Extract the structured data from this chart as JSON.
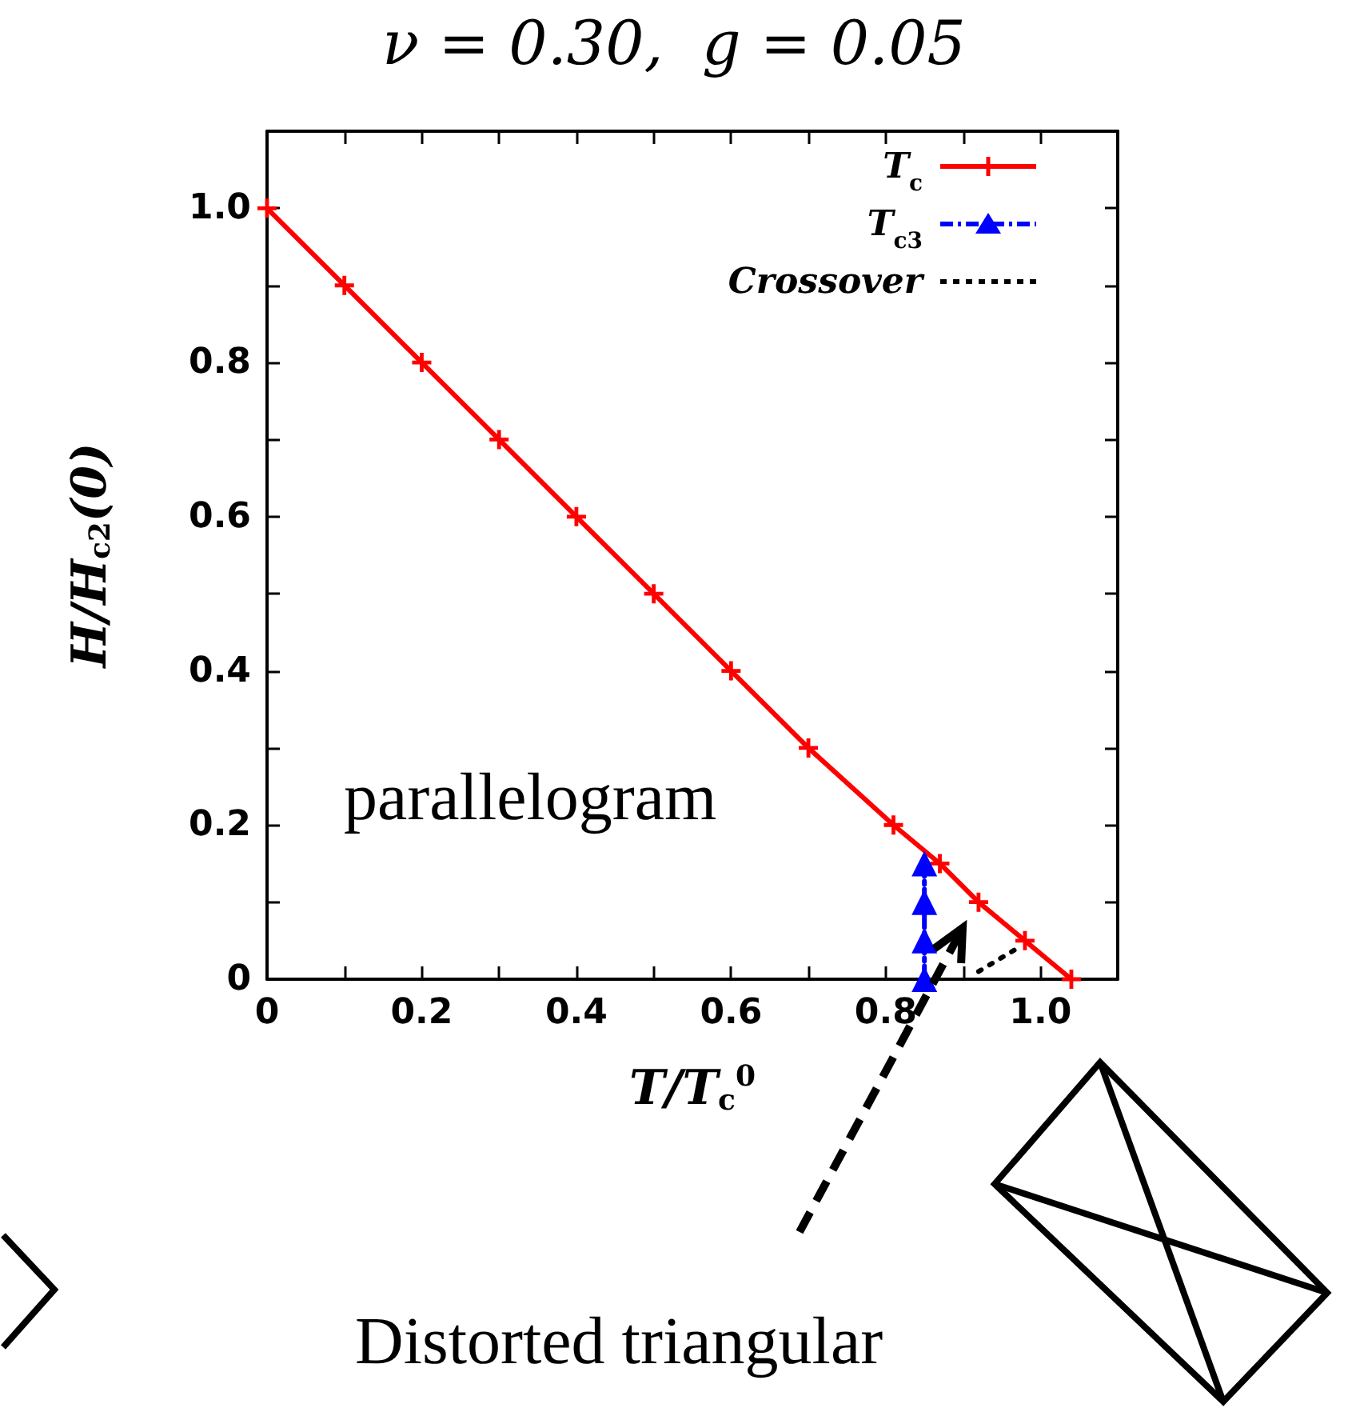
{
  "chart_data": {
    "type": "line",
    "title": "ν = 0.30,  g = 0.05",
    "xlabel": "T/T$_{c}$$^{0}$",
    "ylabel": "H/H$_{c2}$(0)",
    "xlim": [
      0,
      1.1
    ],
    "ylim": [
      0,
      1.1
    ],
    "xticks": [
      0,
      {
        "value": 0.1,
        "label": null
      },
      0.2,
      {
        "value": 0.3,
        "label": null
      },
      0.4,
      {
        "value": 0.5,
        "label": null
      },
      0.6,
      {
        "value": 0.7,
        "label": null
      },
      0.8,
      {
        "value": 0.9,
        "label": null
      },
      {
        "value": 1,
        "label": "1.0"
      }
    ],
    "yticks": [
      0,
      {
        "value": 0.1,
        "label": null
      },
      0.2,
      {
        "value": 0.3,
        "label": null
      },
      0.4,
      {
        "value": 0.5,
        "label": null
      },
      0.6,
      {
        "value": 0.7,
        "label": null
      },
      0.8,
      {
        "value": 0.9,
        "label": null
      },
      {
        "value": 1,
        "label": "1.0"
      }
    ],
    "grid": false,
    "legend": "top right",
    "series": [
      {
        "name": "T$_{c}$",
        "color": "#ff0000",
        "marker": "cross",
        "line_style": "solid",
        "x": [
          0,
          0.1,
          0.2,
          0.3,
          0.4,
          0.5,
          0.6,
          0.7,
          0.81,
          0.87,
          0.92,
          0.98,
          1.04
        ],
        "values": [
          1,
          0.9,
          0.8,
          0.7,
          0.6,
          0.5,
          0.4,
          0.3,
          0.2,
          0.15,
          0.1,
          0.05,
          0
        ]
      },
      {
        "name": "T$_{c3}$",
        "color": "#0000ff",
        "marker": "triangle",
        "line_style": "dashed",
        "x": [
          0.85,
          0.85,
          0.85,
          0.85
        ],
        "values": [
          0.15,
          0.1,
          0.05,
          0
        ]
      },
      {
        "name": "Crossover",
        "color": "#000000",
        "marker": "none",
        "line_style": "dotted",
        "x": [
          0.92,
          0.97
        ],
        "values": [
          0.01,
          0.04
        ]
      }
    ],
    "annotations": [
      "parallelogram",
      "Distorted triangular"
    ]
  }
}
